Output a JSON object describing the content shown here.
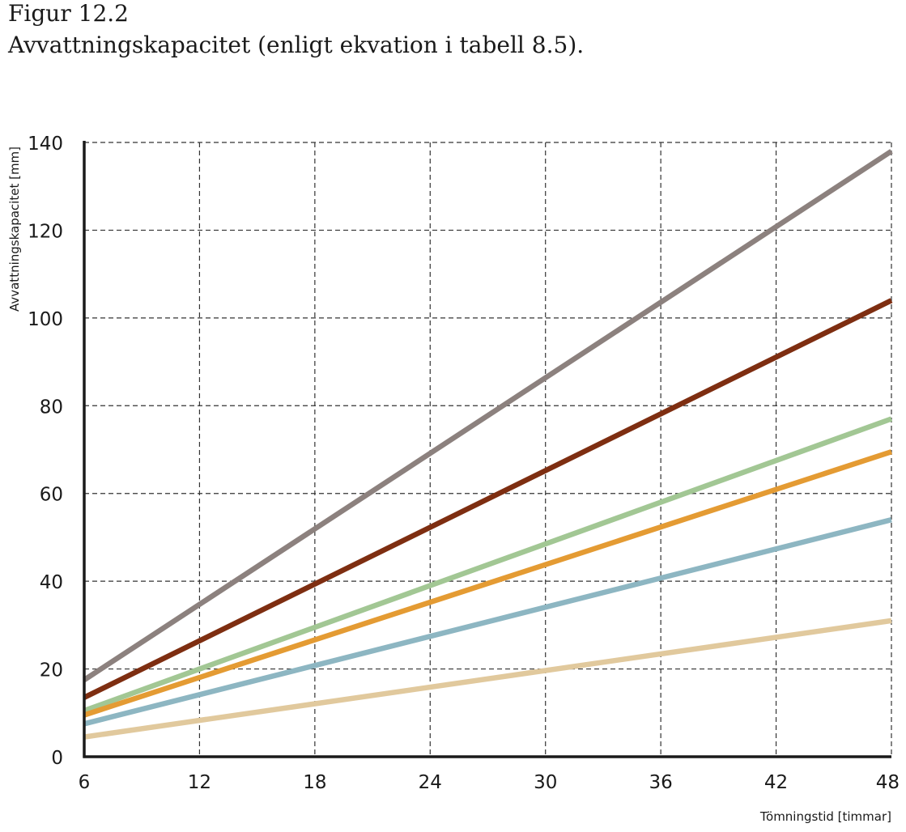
{
  "figure": {
    "label": "Figur 12.2",
    "caption": "Avvattningskapacitet (enligt ekvation i tabell 8.5)."
  },
  "chart_data": {
    "type": "line",
    "xlabel": "Tömningstid [timmar]",
    "ylabel": "Avvattningskapacitet [mm]",
    "xlim": [
      6,
      48
    ],
    "ylim": [
      0,
      140
    ],
    "xticks": [
      6,
      12,
      18,
      24,
      30,
      36,
      42,
      48
    ],
    "yticks": [
      0,
      20,
      40,
      60,
      80,
      100,
      120,
      140
    ],
    "grid": true,
    "x": [
      6,
      48
    ],
    "series": [
      {
        "color": "#8c817e",
        "values": [
          17.5,
          138
        ]
      },
      {
        "color": "#7e2e11",
        "values": [
          13.5,
          104
        ]
      },
      {
        "color": "#a2c794",
        "values": [
          10.5,
          77
        ]
      },
      {
        "color": "#e49b33",
        "values": [
          9.5,
          69.5
        ]
      },
      {
        "color": "#8db6c2",
        "values": [
          7.5,
          54
        ]
      },
      {
        "color": "#e1c99d",
        "values": [
          4.5,
          31
        ]
      }
    ]
  }
}
